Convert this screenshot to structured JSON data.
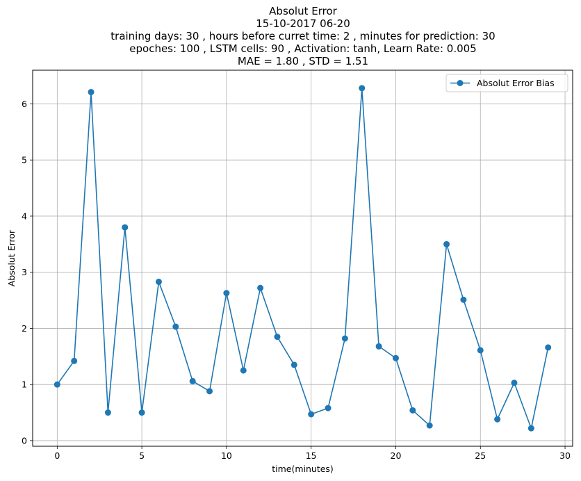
{
  "chart_data": {
    "type": "line",
    "title": [
      "Absolut Error",
      "15-10-2017 06-20",
      "training days: 30 , hours before curret time: 2 , minutes for prediction: 30",
      "epoches: 100 , LSTM cells: 90 , Activation: tanh, Learn Rate: 0.005",
      "MAE = 1.80 , STD = 1.51"
    ],
    "xlabel": "time(minutes)",
    "ylabel": "Absolut Error",
    "xlim": [
      -1.45,
      30.45
    ],
    "ylim": [
      -0.1,
      6.6
    ],
    "xticks": [
      0,
      5,
      10,
      15,
      20,
      25,
      30
    ],
    "yticks": [
      0,
      1,
      2,
      3,
      4,
      5,
      6
    ],
    "grid": true,
    "legend_position": "top-right",
    "series": [
      {
        "name": "Absolut Error Bias",
        "color": "#1f77b4",
        "marker": "circle",
        "x": [
          0,
          1,
          2,
          3,
          4,
          5,
          6,
          7,
          8,
          9,
          10,
          11,
          12,
          13,
          14,
          15,
          16,
          17,
          18,
          19,
          20,
          21,
          22,
          23,
          24,
          25,
          26,
          27,
          28,
          29
        ],
        "y": [
          1.0,
          1.42,
          6.21,
          0.5,
          3.8,
          0.5,
          2.83,
          2.03,
          1.06,
          0.88,
          2.63,
          1.25,
          2.72,
          1.85,
          1.35,
          0.47,
          0.58,
          1.82,
          6.28,
          1.68,
          1.47,
          0.54,
          0.27,
          3.5,
          2.51,
          1.61,
          0.38,
          1.03,
          0.22,
          1.66
        ]
      }
    ]
  }
}
